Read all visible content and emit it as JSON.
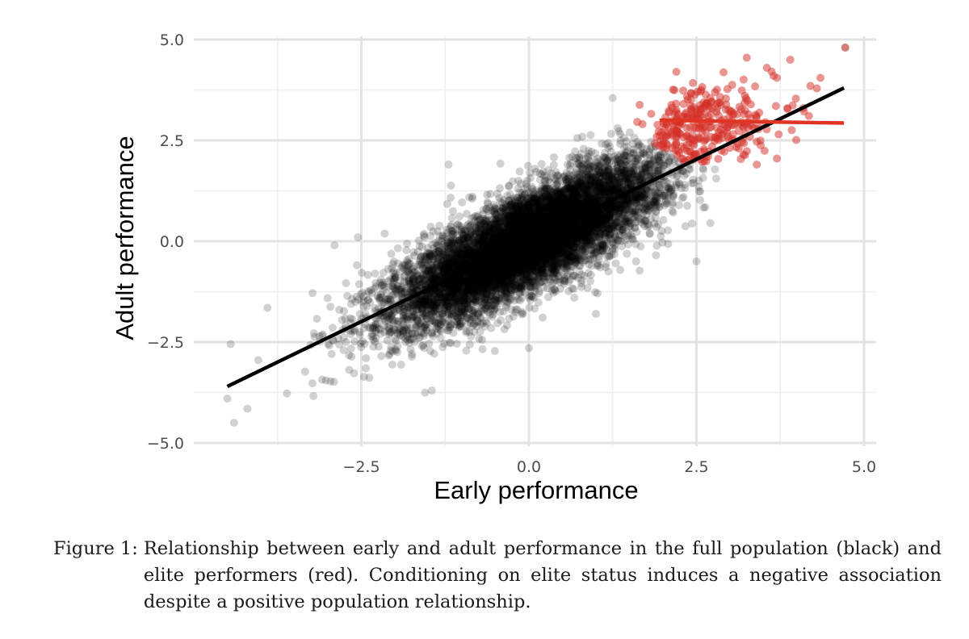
{
  "chart_data": {
    "type": "scatter",
    "title": "",
    "xlabel": "Early performance",
    "ylabel": "Adult performance",
    "xlim": [
      -4.75,
      5.0
    ],
    "ylim": [
      -5.0,
      5.0
    ],
    "xticks": [
      -2.5,
      0.0,
      2.5,
      5.0
    ],
    "xtick_labels": [
      "−2.5",
      "0.0",
      "2.5",
      "5.0"
    ],
    "yticks": [
      -5.0,
      -2.5,
      0.0,
      2.5,
      5.0
    ],
    "ytick_labels": [
      "−5.0",
      "−2.5",
      "0.0",
      "2.5",
      "5.0"
    ],
    "grid": true,
    "series": [
      {
        "name": "full population",
        "color": "#000000",
        "point_opacity": 0.18,
        "distribution": {
          "mean_x": 0.0,
          "mean_y": 0.0,
          "sd_x": 1.0,
          "sd_y": 1.0,
          "correlation": 0.8
        },
        "fit_line": {
          "x": [
            -4.5,
            4.7
          ],
          "y": [
            -3.6,
            3.8
          ]
        },
        "notable_points": [
          {
            "x": 4.72,
            "y": 4.8
          },
          {
            "x": -4.5,
            "y": -3.9
          },
          {
            "x": -4.4,
            "y": -4.5
          },
          {
            "x": -4.2,
            "y": -4.15
          },
          {
            "x": -4.45,
            "y": -2.55
          },
          {
            "x": -3.9,
            "y": -1.65
          },
          {
            "x": -2.9,
            "y": -0.1
          },
          {
            "x": -2.55,
            "y": 0.1
          },
          {
            "x": -1.2,
            "y": 1.9
          },
          {
            "x": 1.25,
            "y": 3.55
          },
          {
            "x": 1.0,
            "y": -1.8
          },
          {
            "x": 0.0,
            "y": -2.65
          },
          {
            "x": -1.45,
            "y": -3.7
          },
          {
            "x": 2.5,
            "y": -0.5
          }
        ]
      },
      {
        "name": "elite performers",
        "color": "#d42d25",
        "point_opacity": 0.5,
        "fit_line": {
          "x": [
            1.95,
            4.7
          ],
          "y": [
            3.0,
            2.93
          ]
        },
        "notable_points": [
          {
            "x": 3.25,
            "y": 4.55
          },
          {
            "x": 3.55,
            "y": 4.3
          },
          {
            "x": 3.9,
            "y": 4.5
          },
          {
            "x": 3.65,
            "y": 4.1
          },
          {
            "x": 3.7,
            "y": 4.05
          },
          {
            "x": 4.35,
            "y": 4.05
          },
          {
            "x": 4.2,
            "y": 3.85
          },
          {
            "x": 2.2,
            "y": 4.2
          },
          {
            "x": 3.2,
            "y": 2.15
          },
          {
            "x": 3.7,
            "y": 2.05
          },
          {
            "x": 3.4,
            "y": 1.9
          }
        ]
      }
    ]
  },
  "caption": {
    "label": "Figure 1:",
    "text": "Relationship between early and adult performance in the full population (black) and elite performers (red). Conditioning on elite status induces a negative association despite a positive population relationship."
  }
}
